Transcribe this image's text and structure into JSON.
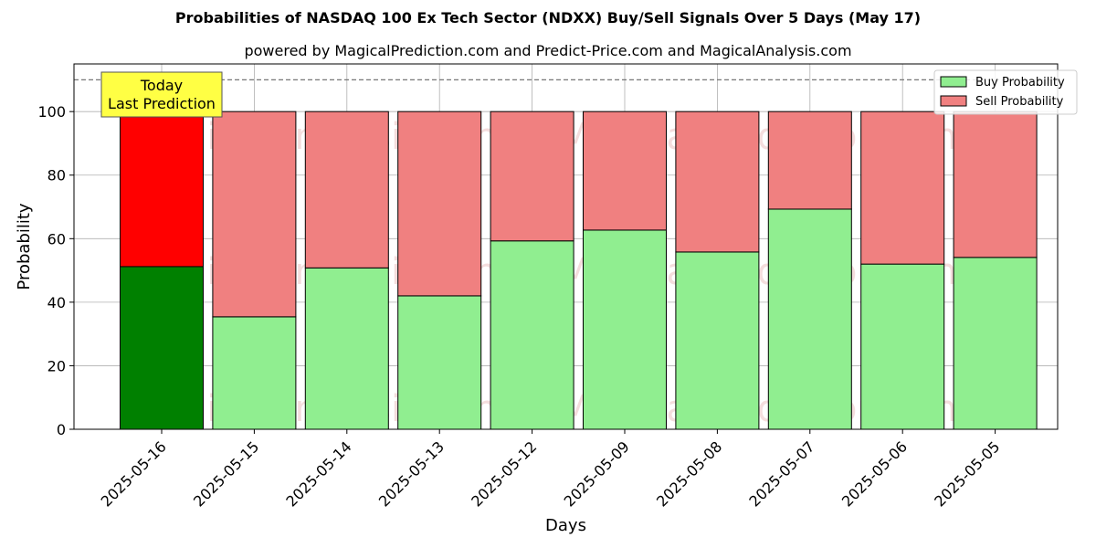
{
  "chart_data": {
    "type": "bar",
    "stacked": true,
    "title": "Probabilities of NASDAQ 100 Ex Tech Sector (NDXX) Buy/Sell Signals Over 5 Days (May 17)",
    "subtitle": "powered by MagicalPrediction.com and Predict-Price.com and MagicalAnalysis.com",
    "xlabel": "Days",
    "ylabel": "Probability",
    "ylim": [
      0,
      115
    ],
    "yticks": [
      0,
      20,
      40,
      60,
      80,
      100
    ],
    "reference_line": 110,
    "grid": true,
    "legend_position": "top-right",
    "categories": [
      "2025-05-16",
      "2025-05-15",
      "2025-05-14",
      "2025-05-13",
      "2025-05-12",
      "2025-05-09",
      "2025-05-08",
      "2025-05-07",
      "2025-05-06",
      "2025-05-05"
    ],
    "series": [
      {
        "name": "Buy Probability",
        "color": "#90ee90",
        "highlight_color": "#008000",
        "values": [
          51.2,
          35.4,
          50.8,
          42.0,
          59.3,
          62.7,
          55.8,
          69.3,
          52.0,
          54.1
        ]
      },
      {
        "name": "Sell Probability",
        "color": "#f08080",
        "highlight_color": "#ff0000",
        "values": [
          48.8,
          64.6,
          49.2,
          58.0,
          40.7,
          37.3,
          44.2,
          30.7,
          48.0,
          45.9
        ]
      }
    ],
    "annotation": {
      "lines": [
        "Today",
        "Last Prediction"
      ],
      "category_index": 0,
      "color": "#ffff44"
    },
    "watermarks": [
      "MagicalAnalysis.com",
      "MagicalPrediction.com"
    ]
  }
}
